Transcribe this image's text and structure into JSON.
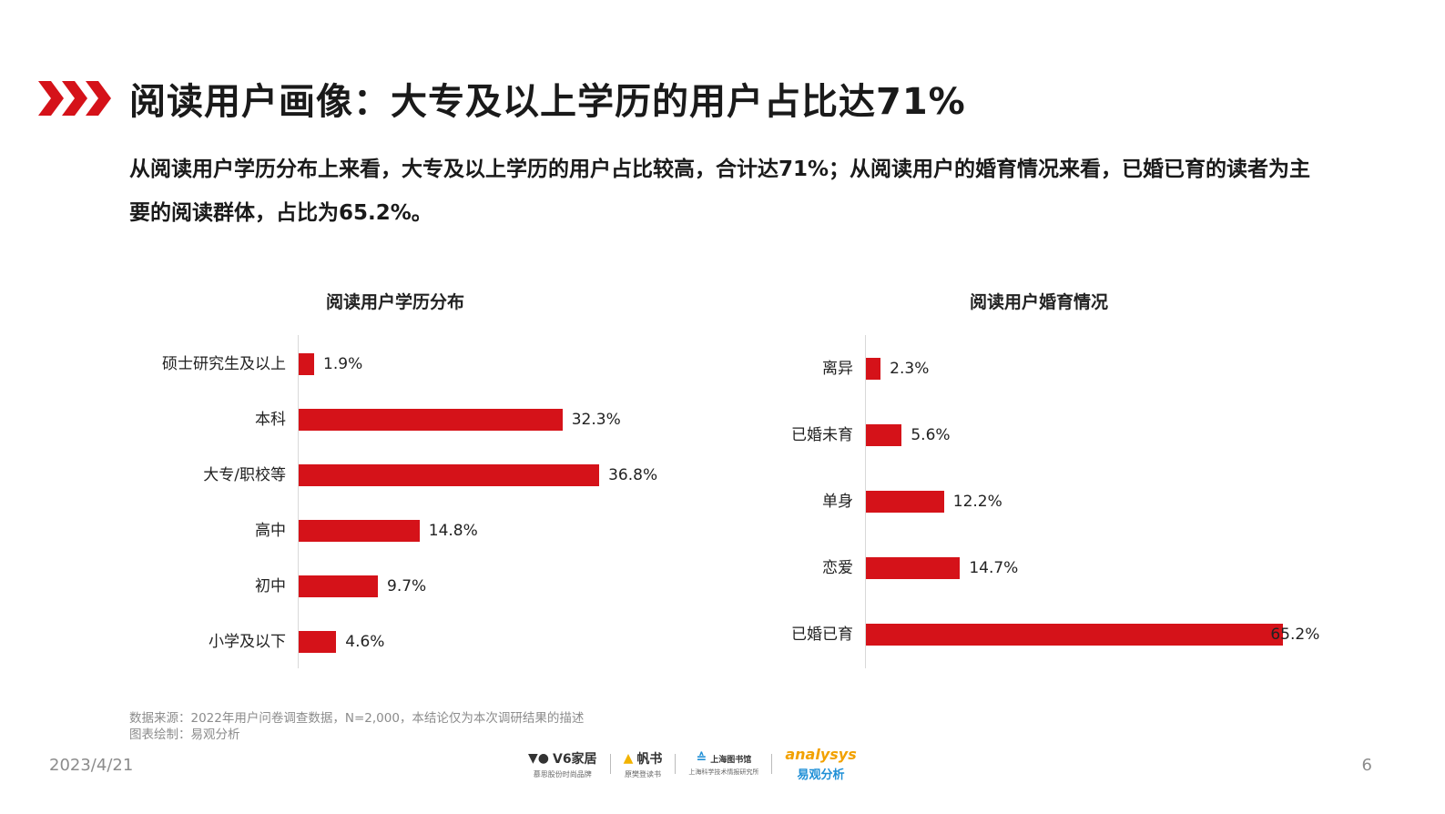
{
  "header": {
    "icon": "triple-chevron-right-icon",
    "accent_color": "#d51219",
    "title": "阅读用户画像：大专及以上学历的用户占比达71%"
  },
  "summary": {
    "text": "从阅读用户学历分布上来看，大专及以上学历的用户占比较高，合计达71%；从阅读用户的婚育情况来看，已婚已育的读者为主要的阅读群体，占比为65.2%。"
  },
  "chart_data": [
    {
      "type": "bar",
      "orientation": "horizontal",
      "title": "阅读用户学历分布",
      "categories": [
        "硕士研究生及以上",
        "本科",
        "大专/职校等",
        "高中",
        "初中",
        "小学及以下"
      ],
      "values": [
        1.9,
        32.3,
        36.8,
        14.8,
        9.7,
        4.6
      ],
      "labels": [
        "1.9%",
        "32.3%",
        "36.8%",
        "14.8%",
        "9.7%",
        "4.6%"
      ],
      "unit": "%",
      "xlabel": "",
      "ylabel": "",
      "grid": false,
      "bar_color": "#d51219"
    },
    {
      "type": "bar",
      "orientation": "horizontal",
      "title": "阅读用户婚育情况",
      "categories": [
        "离异",
        "已婚未育",
        "单身",
        "恋爱",
        "已婚已育"
      ],
      "values": [
        2.3,
        5.6,
        12.2,
        14.7,
        65.2
      ],
      "labels": [
        "2.3%",
        "5.6%",
        "12.2%",
        "14.7%",
        "65.2%"
      ],
      "unit": "%",
      "xlabel": "",
      "ylabel": "",
      "grid": false,
      "bar_color": "#d51219"
    }
  ],
  "source": {
    "line1": "数据来源：2022年用户问卷调查数据，N=2,000，本结论仅为本次调研结果的描述",
    "line2": "图表绘制：易观分析"
  },
  "logos": [
    {
      "name": "V6家居",
      "sub": "慕思股份时尚品牌"
    },
    {
      "name": "帆书",
      "sub": "原樊登读书"
    },
    {
      "name": "上海图书馆",
      "sub": "上海科学技术情报研究所"
    },
    {
      "name": "analysys",
      "sub": "易观分析"
    }
  ],
  "footer": {
    "date": "2023/4/21",
    "page": "6"
  }
}
